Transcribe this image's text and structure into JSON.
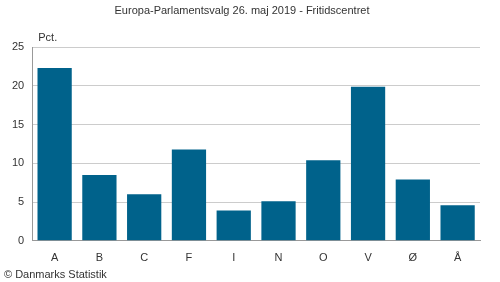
{
  "chart_data": {
    "type": "bar",
    "title": "Europa-Parlamentsvalg 26. maj 2019 - Fritidscentret",
    "ylabel": "Pct.",
    "annotations": [
      "© Danmarks Statistik"
    ],
    "categories": [
      "A",
      "B",
      "C",
      "F",
      "I",
      "N",
      "O",
      "V",
      "Ø",
      "Å"
    ],
    "values": [
      22.3,
      8.5,
      6.0,
      11.8,
      3.9,
      5.1,
      10.4,
      19.9,
      7.9,
      4.6
    ],
    "color": "#00628b",
    "ylim": [
      0,
      25
    ],
    "yticks": [
      0,
      5,
      10,
      15,
      20,
      25
    ],
    "grid": true
  }
}
